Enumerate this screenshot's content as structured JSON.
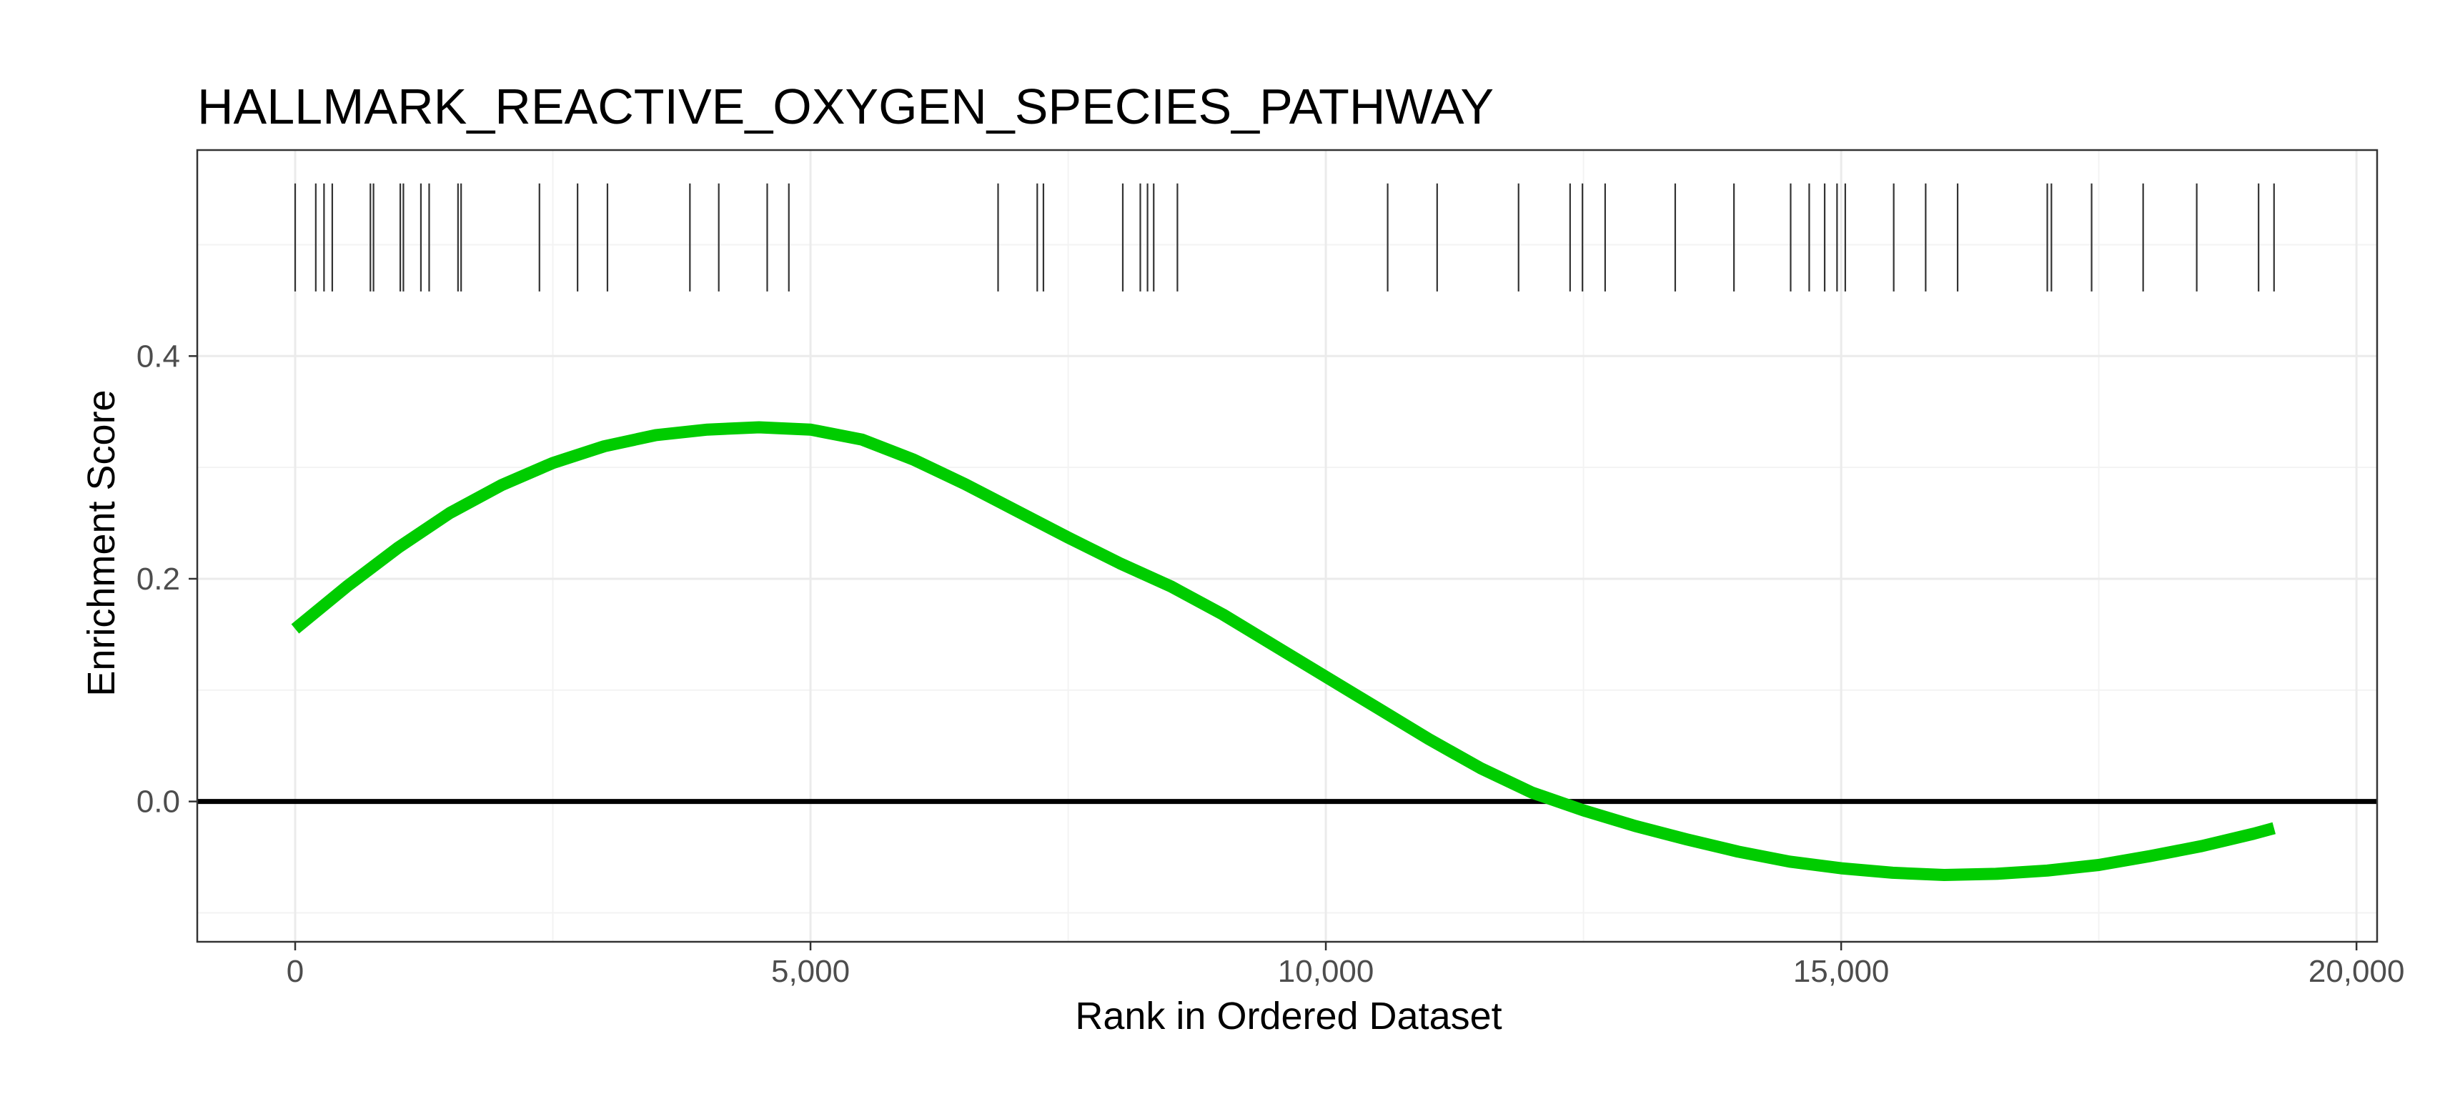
{
  "chart_data": {
    "type": "line",
    "title": "HALLMARK_REACTIVE_OXYGEN_SPECIES_PATHWAY",
    "xlabel": "Rank in Ordered Dataset",
    "ylabel": "Enrichment Score",
    "xlim": [
      -950,
      20200
    ],
    "ylim": [
      -0.126,
      0.585
    ],
    "x_ticks": [
      {
        "value": 0,
        "label": "0"
      },
      {
        "value": 5000,
        "label": "5,000"
      },
      {
        "value": 10000,
        "label": "10,000"
      },
      {
        "value": 15000,
        "label": "15,000"
      },
      {
        "value": 20000,
        "label": "20,000"
      }
    ],
    "y_ticks": [
      {
        "value": 0.0,
        "label": "0.0"
      },
      {
        "value": 0.2,
        "label": "0.2"
      },
      {
        "value": 0.4,
        "label": "0.4"
      }
    ],
    "grid": true,
    "zero_line": 0.0,
    "series": [
      {
        "color": "#00cc00",
        "x": [
          0,
          500,
          1000,
          1500,
          2000,
          2500,
          3000,
          3500,
          4000,
          4500,
          5000,
          5500,
          6000,
          6500,
          7000,
          7500,
          8000,
          8500,
          9000,
          9500,
          10000,
          10500,
          11000,
          11500,
          12000,
          12500,
          13000,
          13500,
          14000,
          14500,
          15000,
          15500,
          16000,
          16500,
          17000,
          17500,
          18000,
          18500,
          19000,
          19200
        ],
        "y": [
          0.155,
          0.193,
          0.228,
          0.259,
          0.284,
          0.304,
          0.319,
          0.329,
          0.334,
          0.336,
          0.334,
          0.325,
          0.307,
          0.285,
          0.261,
          0.237,
          0.214,
          0.193,
          0.168,
          0.14,
          0.112,
          0.084,
          0.056,
          0.03,
          0.008,
          -0.008,
          -0.022,
          -0.034,
          -0.045,
          -0.054,
          -0.06,
          -0.064,
          -0.066,
          -0.065,
          -0.062,
          -0.057,
          -0.049,
          -0.04,
          -0.029,
          -0.024
        ]
      }
    ],
    "hit_band": [
      0.458,
      0.555
    ],
    "hits": [
      0,
      200,
      280,
      360,
      730,
      760,
      1020,
      1050,
      1220,
      1300,
      1580,
      1610,
      2370,
      2740,
      3030,
      3830,
      4110,
      4580,
      4790,
      6820,
      7200,
      7260,
      8030,
      8200,
      8270,
      8330,
      8560,
      10600,
      11080,
      11870,
      12370,
      12490,
      12710,
      13390,
      13960,
      14510,
      14690,
      14840,
      14960,
      15040,
      15510,
      15820,
      16130,
      17000,
      17040,
      17430,
      17930,
      18450,
      19050,
      19200
    ]
  }
}
